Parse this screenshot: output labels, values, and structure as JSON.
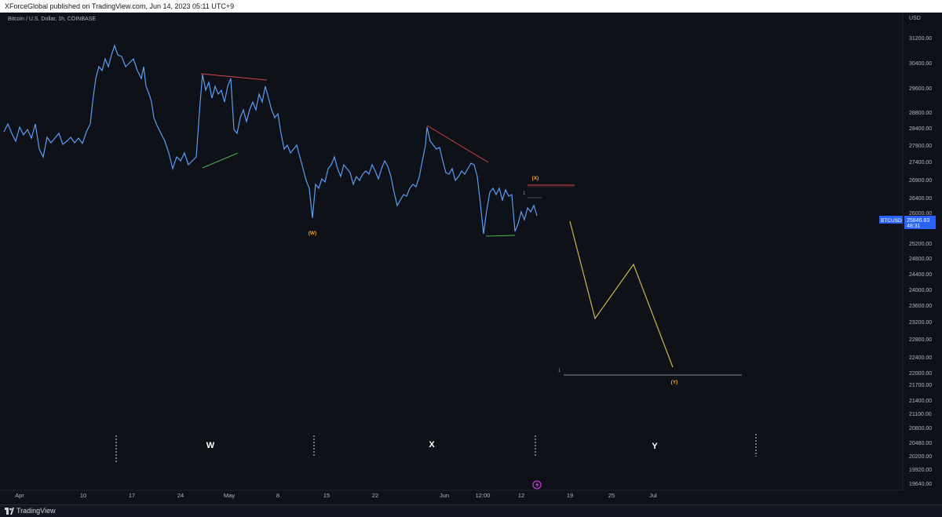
{
  "header": {
    "published_line": "XForceGlobal published on TradingView.com, Jun 14, 2023 05:11 UTC+9"
  },
  "symbol": {
    "description": "Bitcoin / U.S. Dollar, 1h, COINBASE"
  },
  "price_axis": {
    "currency": "USD",
    "labels": [
      "31200.00",
      "30400.00",
      "29600.00",
      "28800.00",
      "28400.00",
      "27900.00",
      "27400.00",
      "26900.00",
      "26400.00",
      "26000.00",
      "25200.00",
      "24800.00",
      "24400.00",
      "24000.00",
      "23600.00",
      "23200.00",
      "22800.00",
      "22400.00",
      "22000.00",
      "21700.00",
      "21400.00",
      "21100.00",
      "20800.00",
      "20480.00",
      "20200.00",
      "19920.00",
      "19640.00"
    ],
    "last_tag": "BTCUSD",
    "last_price": "25846.83",
    "countdown": "48:31"
  },
  "time_axis": {
    "labels": [
      "Apr",
      "10",
      "17",
      "24",
      "May",
      "8",
      "15",
      "22",
      "Jun",
      "12:00",
      "12",
      "19",
      "25",
      "Jul"
    ]
  },
  "annotations": {
    "wave_w_small": "(W)",
    "wave_x_small": "(X)",
    "wave_y_small": "(Y)",
    "wave_w_big": "W",
    "wave_x_big": "X",
    "wave_y_big": "Y",
    "marker_one_a": "1",
    "marker_one_b": "1"
  },
  "colors": {
    "background": "#0f1118",
    "candles": "#5b9cf6",
    "projection": "#c9b84a",
    "red_line": "#d9434a",
    "green_line": "#4caf50",
    "orange_label": "#f5a623",
    "price_tag": "#2962ff"
  },
  "footer": {
    "brand": "TradingView"
  }
}
